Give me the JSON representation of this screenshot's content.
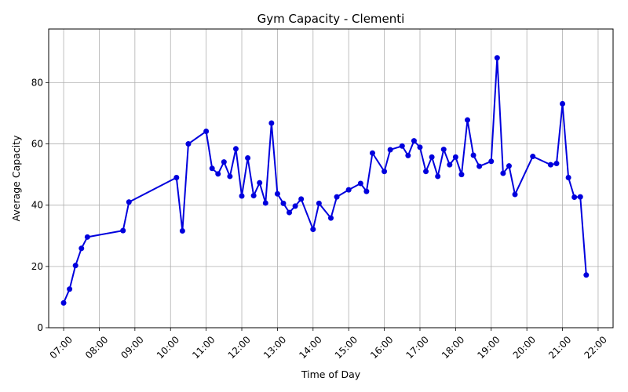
{
  "chart_data": {
    "type": "line",
    "title": "Gym Capacity - Clementi",
    "xlabel": "Time of Day",
    "ylabel": "Average Capacity",
    "x_ticks": [
      "07:00",
      "08:00",
      "09:00",
      "10:00",
      "11:00",
      "12:00",
      "13:00",
      "14:00",
      "15:00",
      "16:00",
      "17:00",
      "18:00",
      "19:00",
      "20:00",
      "21:00",
      "22:00"
    ],
    "x_tick_hours": [
      7,
      8,
      9,
      10,
      11,
      12,
      13,
      14,
      15,
      16,
      17,
      18,
      19,
      20,
      21,
      22
    ],
    "y_ticks": [
      0,
      20,
      40,
      60,
      80
    ],
    "xlim": [
      6.58,
      22.42
    ],
    "ylim": [
      0,
      97.5
    ],
    "grid": true,
    "series": [
      {
        "color": "#0000dd",
        "x": [
          "07:00",
          "07:10",
          "07:20",
          "07:30",
          "07:40",
          "08:40",
          "08:50",
          "10:10",
          "10:20",
          "10:30",
          "11:00",
          "11:10",
          "11:20",
          "11:30",
          "11:40",
          "11:50",
          "12:00",
          "12:10",
          "12:20",
          "12:30",
          "12:40",
          "12:50",
          "13:00",
          "13:10",
          "13:20",
          "13:30",
          "13:40",
          "14:00",
          "14:10",
          "14:30",
          "14:40",
          "15:00",
          "15:20",
          "15:30",
          "15:40",
          "16:00",
          "16:10",
          "16:30",
          "16:40",
          "16:50",
          "17:00",
          "17:10",
          "17:20",
          "17:30",
          "17:40",
          "17:50",
          "18:00",
          "18:10",
          "18:20",
          "18:30",
          "18:40",
          "19:00",
          "19:10",
          "19:20",
          "19:30",
          "19:40",
          "20:10",
          "20:40",
          "20:50",
          "21:00",
          "21:10",
          "21:20",
          "21:30",
          "21:40"
        ],
        "y": [
          8.1,
          12.6,
          20.3,
          25.9,
          29.6,
          31.7,
          41.0,
          49.0,
          31.6,
          60.0,
          64.1,
          52.0,
          50.2,
          54.1,
          49.4,
          58.4,
          43.0,
          55.4,
          43.1,
          47.3,
          40.7,
          66.8,
          43.7,
          40.6,
          37.6,
          39.7,
          42.0,
          32.1,
          40.6,
          35.8,
          42.7,
          45.0,
          47.1,
          44.5,
          57.0,
          51.0,
          58.1,
          59.3,
          56.2,
          61.0,
          58.9,
          51.0,
          55.7,
          49.4,
          58.2,
          53.2,
          55.7,
          50.0,
          67.8,
          56.3,
          52.7,
          54.3,
          88.1,
          50.4,
          52.8,
          43.5,
          55.9,
          53.2,
          53.6,
          73.1,
          49.0,
          42.6,
          42.7,
          17.2
        ]
      }
    ]
  }
}
